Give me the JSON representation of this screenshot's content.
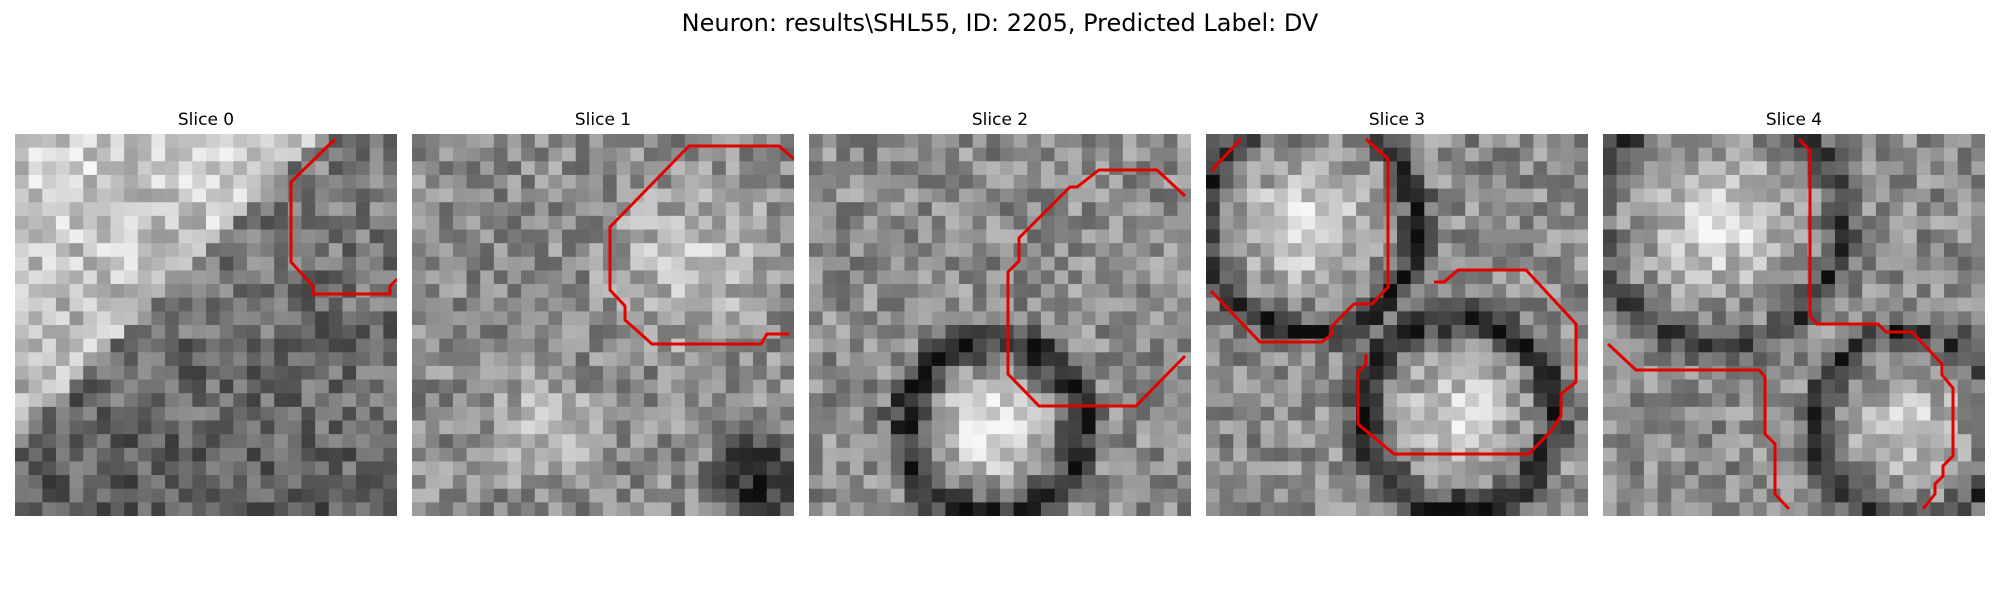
{
  "figure": {
    "title": "Neuron: results\\SHL55, ID: 2205, Predicted Label: DV",
    "overlay_color": "#e50000",
    "panels": [
      {
        "title": "Slice 0",
        "contour_image": "slice-0-neuron-mask"
      },
      {
        "title": "Slice 1",
        "contour_image": "slice-1-neuron-mask"
      },
      {
        "title": "Slice 2",
        "contour_image": "slice-2-neuron-mask"
      },
      {
        "title": "Slice 3",
        "contour_image": "slice-3-neuron-mask"
      },
      {
        "title": "Slice 4",
        "contour_image": "slice-4-neuron-mask"
      }
    ]
  }
}
